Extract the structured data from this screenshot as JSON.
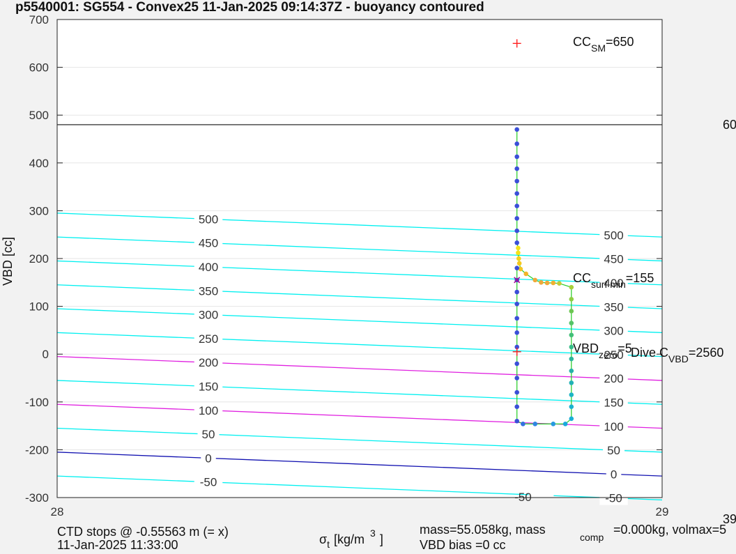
{
  "chart_data": {
    "type": "scatter",
    "title": "p5540001: SG554 - Convex25 11-Jan-2025 09:14:37Z - buoyancy contoured",
    "xlabel_main": "σ",
    "xlabel_sub": "t",
    "xlabel_unit": "[kg/m",
    "xlabel_sup": "3",
    "xlabel_close": "]",
    "ylabel": "VBD [cc]",
    "xlim": [
      28,
      29
    ],
    "ylim": [
      -300,
      700
    ],
    "x_ticks": [
      "28",
      "29"
    ],
    "y_ticks": [
      "-300",
      "-200",
      "-100",
      "0",
      "100",
      "200",
      "300",
      "400",
      "500",
      "600",
      "700"
    ],
    "grid": true,
    "hline_vbd": 480,
    "buoyancy_contours": {
      "slope_cc_per_unit": -50,
      "cyan": [
        {
          "label": "500",
          "y_left": 295
        },
        {
          "label": "450",
          "y_left": 245
        },
        {
          "label": "400",
          "y_left": 195
        },
        {
          "label": "350",
          "y_left": 145
        },
        {
          "label": "300",
          "y_left": 95
        },
        {
          "label": "250",
          "y_left": 45
        },
        {
          "label": "150",
          "y_left": -55
        },
        {
          "label": "50",
          "y_left": -155
        },
        {
          "label": "-50",
          "y_left": -255
        }
      ],
      "magenta": [
        {
          "label": "200",
          "y_left": -5
        },
        {
          "label": "100",
          "y_left": -105
        }
      ],
      "blue": [
        {
          "label": "0",
          "y_left": -205
        }
      ],
      "left_label_x": 28.25,
      "right_label_x": 28.92,
      "bottom_label": {
        "label": "-50",
        "x": 28.8
      }
    },
    "series_points": [
      {
        "x": 28.76,
        "y": 470,
        "c": "#3a4fd8"
      },
      {
        "x": 28.76,
        "y": 440,
        "c": "#3a4fd8"
      },
      {
        "x": 28.76,
        "y": 413,
        "c": "#3a4fd8"
      },
      {
        "x": 28.76,
        "y": 388,
        "c": "#3a4fd8"
      },
      {
        "x": 28.76,
        "y": 362,
        "c": "#3a4fd8"
      },
      {
        "x": 28.76,
        "y": 336,
        "c": "#3a4fd8"
      },
      {
        "x": 28.76,
        "y": 310,
        "c": "#3a4fd8"
      },
      {
        "x": 28.76,
        "y": 284,
        "c": "#3a4fd8"
      },
      {
        "x": 28.76,
        "y": 258,
        "c": "#3a4fd8"
      },
      {
        "x": 28.76,
        "y": 233,
        "c": "#3a4fd8"
      },
      {
        "x": 28.762,
        "y": 222,
        "c": "#f5e31a"
      },
      {
        "x": 28.762,
        "y": 212,
        "c": "#f5e31a"
      },
      {
        "x": 28.763,
        "y": 200,
        "c": "#f5d31a"
      },
      {
        "x": 28.764,
        "y": 190,
        "c": "#f5c91e"
      },
      {
        "x": 28.766,
        "y": 178,
        "c": "#f2c425"
      },
      {
        "x": 28.775,
        "y": 168,
        "c": "#f2b52a"
      },
      {
        "x": 28.79,
        "y": 155,
        "c": "#f0a93a"
      },
      {
        "x": 28.8,
        "y": 150,
        "c": "#f0a93a"
      },
      {
        "x": 28.81,
        "y": 149,
        "c": "#f0a93a"
      },
      {
        "x": 28.82,
        "y": 149,
        "c": "#f0b030"
      },
      {
        "x": 28.83,
        "y": 148,
        "c": "#c6c938"
      },
      {
        "x": 28.85,
        "y": 140,
        "c": "#a8cf3a"
      },
      {
        "x": 28.85,
        "y": 115,
        "c": "#8dcd45"
      },
      {
        "x": 28.85,
        "y": 90,
        "c": "#6cc653"
      },
      {
        "x": 28.85,
        "y": 65,
        "c": "#55c468"
      },
      {
        "x": 28.85,
        "y": 40,
        "c": "#42bf78"
      },
      {
        "x": 28.85,
        "y": 15,
        "c": "#36bc88"
      },
      {
        "x": 28.85,
        "y": -10,
        "c": "#2db59a"
      },
      {
        "x": 28.85,
        "y": -35,
        "c": "#27b2a8"
      },
      {
        "x": 28.85,
        "y": -60,
        "c": "#22b2b6"
      },
      {
        "x": 28.85,
        "y": -85,
        "c": "#1db5c4"
      },
      {
        "x": 28.85,
        "y": -110,
        "c": "#1ab3cf"
      },
      {
        "x": 28.85,
        "y": -135,
        "c": "#1ab0d6"
      },
      {
        "x": 28.84,
        "y": -146,
        "c": "#1aa9dc"
      },
      {
        "x": 28.82,
        "y": -146,
        "c": "#2699e0"
      },
      {
        "x": 28.79,
        "y": -146,
        "c": "#2f86e2"
      },
      {
        "x": 28.77,
        "y": -146,
        "c": "#3470e0"
      },
      {
        "x": 28.76,
        "y": -140,
        "c": "#3a4fd8"
      },
      {
        "x": 28.76,
        "y": -110,
        "c": "#3a4fd8"
      },
      {
        "x": 28.76,
        "y": -80,
        "c": "#3a4fd8"
      },
      {
        "x": 28.76,
        "y": -50,
        "c": "#3a4fd8"
      },
      {
        "x": 28.76,
        "y": -20,
        "c": "#3a4fd8"
      },
      {
        "x": 28.76,
        "y": 15,
        "c": "#3a4fd8"
      },
      {
        "x": 28.76,
        "y": 45,
        "c": "#3a4fd8"
      },
      {
        "x": 28.76,
        "y": 75,
        "c": "#3a4fd8"
      },
      {
        "x": 28.76,
        "y": 105,
        "c": "#3a4fd8"
      },
      {
        "x": 28.76,
        "y": 130,
        "c": "#3a4fd8"
      },
      {
        "x": 28.76,
        "y": 155,
        "c": "#3a4fd8"
      },
      {
        "x": 28.76,
        "y": 180,
        "c": "#3a4fd8"
      }
    ],
    "markers": [
      {
        "name": "cc-sm-marker",
        "x": 28.76,
        "y": 650,
        "symbol": "+",
        "color": "#ff2020"
      },
      {
        "name": "cc-surf-min-marker",
        "x": 28.76,
        "y": 155,
        "symbol": "x",
        "color": "#a01090"
      },
      {
        "name": "vbd-zero-marker",
        "x": 28.76,
        "y": 5,
        "symbol": "+",
        "color": "#ff2020"
      }
    ],
    "annotations": {
      "cc_sm": {
        "main": "CC",
        "sub": "SM",
        "value": "=650"
      },
      "cc_surf_min": {
        "main": "CC",
        "sub": "surf min",
        "value": "=155"
      },
      "vbd_zero": {
        "main": "VBD",
        "sub": "zero",
        "value": "=5"
      },
      "dive_c": {
        "main": "Dive C",
        "sub": "VBD",
        "value": "=2560"
      },
      "right_edge_top": "60",
      "right_edge_bottom": "39"
    },
    "footer": {
      "ctd_line1": "CTD stops @ -0.55563 m (= x)",
      "ctd_line2": "11-Jan-2025 11:33:00",
      "mass_text": "mass=55.058kg, mass",
      "mass_sub": "comp",
      "mass_rest": "=0.000kg, volmax=5",
      "vbd_bias": "VBD bias =0 cc"
    }
  },
  "colors": {
    "cyan": "#00f0f0",
    "magenta": "#e020e0",
    "blue": "#1010b0",
    "track": "#22cc22",
    "grid": "#e6e6e6",
    "axis": "#222222"
  }
}
